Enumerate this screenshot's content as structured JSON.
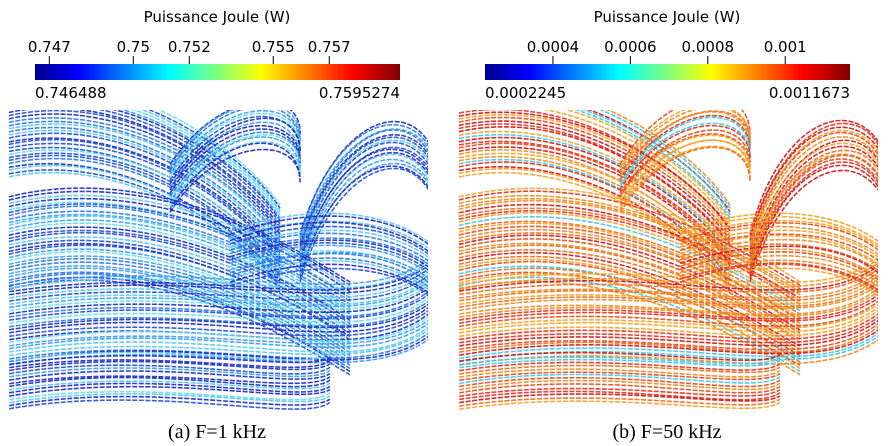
{
  "panels": [
    {
      "colorbar": {
        "title": "Puissance Joule (W)",
        "ticks": [
          0.747,
          0.75,
          0.752,
          0.755,
          0.757
        ],
        "min": 0.746488,
        "max": 0.7595274
      },
      "caption": "(a) F=1 kHz"
    },
    {
      "colorbar": {
        "title": "Puissance Joule (W)",
        "ticks": [
          0.0004,
          0.0006,
          0.0008,
          0.001
        ],
        "min": 0.0002245,
        "max": 0.0011673
      },
      "caption": "(b) F=50 kHz"
    }
  ]
}
